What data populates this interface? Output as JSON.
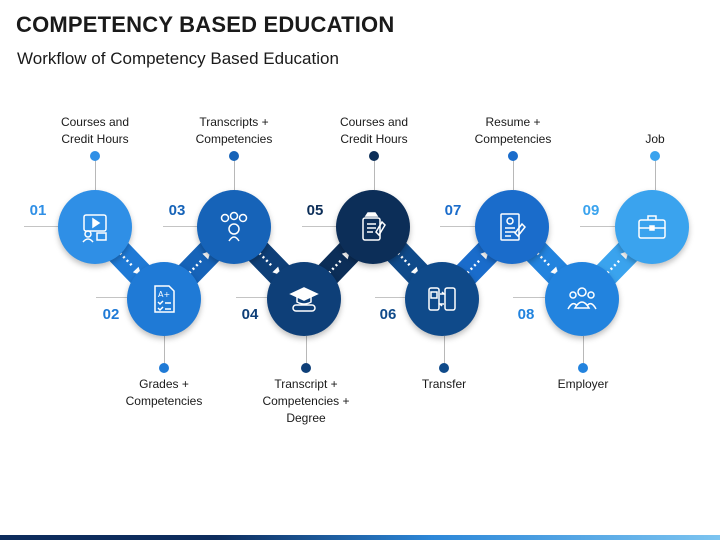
{
  "title": "COMPETENCY BASED EDUCATION",
  "subtitle": "Workflow of Competency Based Education",
  "colors": {
    "step01": "#2f8fe6",
    "step02": "#1f7ad6",
    "step03": "#1663b8",
    "step04": "#0e3f78",
    "step05": "#0c2e58",
    "step06": "#0f4a8a",
    "step07": "#1a6ccb",
    "step08": "#2283de",
    "step09": "#3aa3ee",
    "connector_dots": "#ffffff"
  },
  "steps": [
    {
      "number": "01",
      "label": "Courses and\nCredit Hours",
      "icon": "online-course-icon"
    },
    {
      "number": "02",
      "label": "Grades +\nCompetencies",
      "icon": "grade-sheet-icon"
    },
    {
      "number": "03",
      "label": "Transcripts +\nCompetencies",
      "icon": "skills-gears-icon"
    },
    {
      "number": "04",
      "label": "Transcript +\nCompetencies +\nDegree",
      "icon": "graduation-diploma-icon"
    },
    {
      "number": "05",
      "label": "Courses and\nCredit Hours",
      "icon": "mobile-courses-icon"
    },
    {
      "number": "06",
      "label": "Transfer",
      "icon": "transfer-devices-icon"
    },
    {
      "number": "07",
      "label": "Resume +\nCompetencies",
      "icon": "resume-icon"
    },
    {
      "number": "08",
      "label": "Employer",
      "icon": "team-icon"
    },
    {
      "number": "09",
      "label": "Job",
      "icon": "briefcase-icon"
    }
  ]
}
